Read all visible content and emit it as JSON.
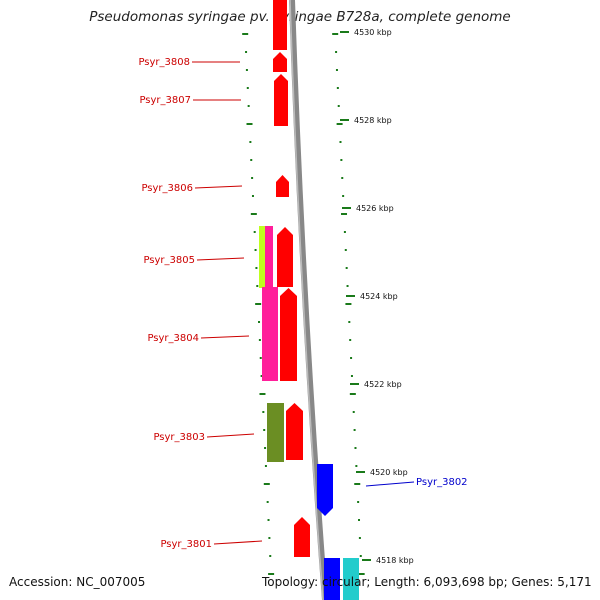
{
  "title": "Pseudomonas syringae pv. syringae B728a, complete genome",
  "footer": {
    "accession": "Accession: NC_007005",
    "stats": "Topology: circular; Length: 6,093,698 bp; Genes: 5,171"
  },
  "colors": {
    "forward_gene": "#ff0000",
    "reverse_gene": "#0000ff",
    "forward_label": "#cc0000",
    "reverse_label": "#0000cc",
    "backbone": "#888888",
    "tick": "#1a7a1a",
    "lime": "#bfff1f",
    "magenta": "#ff1f9a",
    "olive": "#6b8e23",
    "cyan": "#22cccc"
  },
  "scale_labels": [
    "4530 kbp",
    "4528 kbp",
    "4526 kbp",
    "4524 kbp",
    "4522 kbp",
    "4520 kbp",
    "4518 kbp"
  ],
  "gene_labels": [
    {
      "name": "Psyr_3808",
      "strand": "forward"
    },
    {
      "name": "Psyr_3807",
      "strand": "forward"
    },
    {
      "name": "Psyr_3806",
      "strand": "forward"
    },
    {
      "name": "Psyr_3805",
      "strand": "forward"
    },
    {
      "name": "Psyr_3804",
      "strand": "forward"
    },
    {
      "name": "Psyr_3803",
      "strand": "forward"
    },
    {
      "name": "Psyr_3802",
      "strand": "reverse"
    },
    {
      "name": "Psyr_3801",
      "strand": "forward"
    }
  ]
}
